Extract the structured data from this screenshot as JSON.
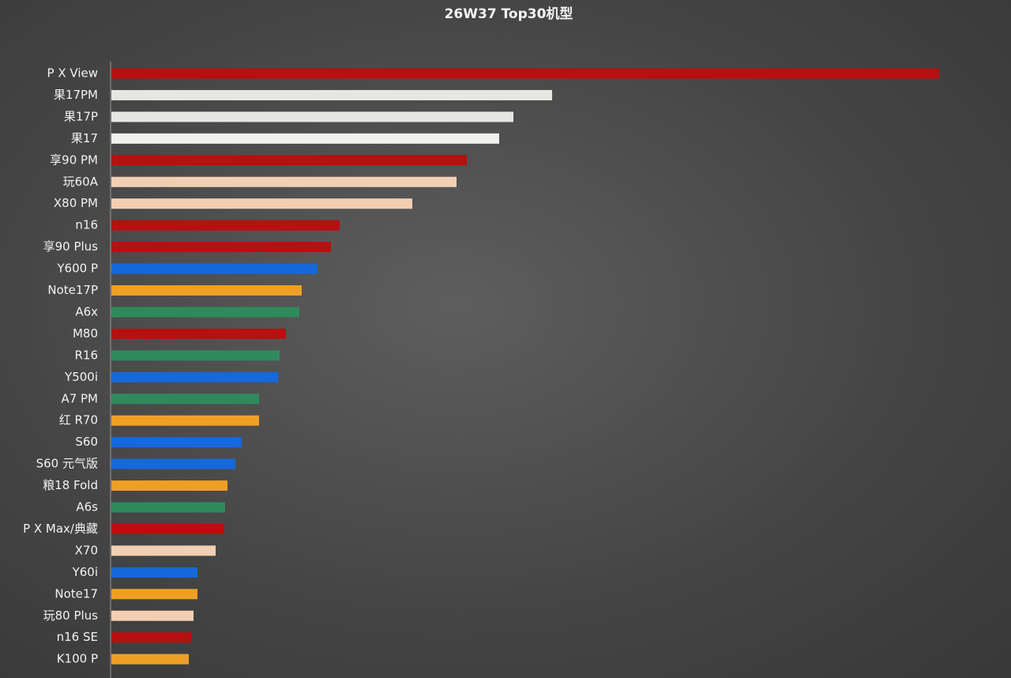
{
  "chart_data": {
    "type": "barh",
    "title": "26W37 Top30机型",
    "categories": [
      "P X View",
      "果17PM",
      "果17P",
      "果17",
      "享90 PM",
      "玩60A",
      "X80 PM",
      "n16",
      "享90 Plus",
      "Y600 P",
      "Note17P",
      "A6x",
      "M80",
      "R16",
      "Y500i",
      "A7 PM",
      "红 R70",
      "S60",
      "S60 元气版",
      "粮18 Fold",
      "A6s",
      "P X Max/典藏",
      "X70",
      "Y60i",
      "Note17",
      "玩80 Plus",
      "n16 SE",
      "K100 P"
    ],
    "values": [
      1048,
      558,
      509,
      491,
      450,
      437,
      381,
      289,
      278,
      261,
      241,
      238,
      221,
      213,
      211,
      187,
      187,
      165,
      157,
      147,
      144,
      143,
      132,
      109,
      109,
      104,
      101,
      98
    ],
    "colors": [
      "#b80f10",
      "#e6e6e2",
      "#e6e6e2",
      "#f0f0ee",
      "#b80f10",
      "#f2cfb2",
      "#f2cfb2",
      "#b80f10",
      "#b80f10",
      "#1668db",
      "#efa024",
      "#2e8a5c",
      "#b80f10",
      "#2e8a5c",
      "#1668db",
      "#2e8a5c",
      "#efa024",
      "#1668db",
      "#1668db",
      "#efa024",
      "#2e8a5c",
      "#b80f10",
      "#f2cfb2",
      "#1668db",
      "#efa024",
      "#f2cfb2",
      "#b80f10",
      "#efa024"
    ]
  }
}
